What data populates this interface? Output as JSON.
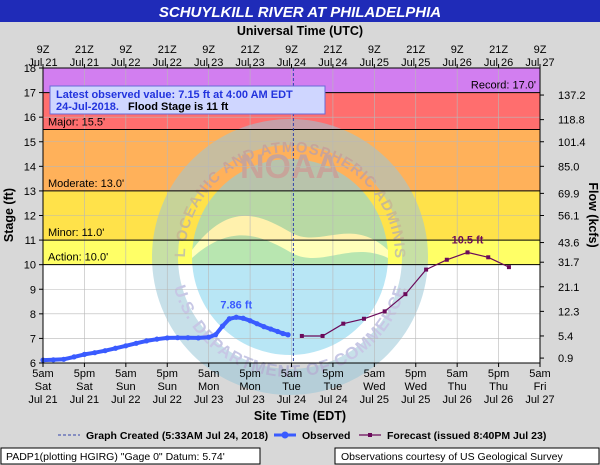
{
  "header": {
    "title": "SCHUYLKILL RIVER AT PHILADELPHIA",
    "top_axis_title": "Universal Time (UTC)",
    "bottom_axis_title": "Site Time (EDT)"
  },
  "latest_box": {
    "line1": "Latest observed value: 7.15 ft at 4:00 AM EDT",
    "line2_date": "24-Jul-2018.",
    "line2_flood": "Flood Stage is 11 ft"
  },
  "legend": {
    "graph_created": "Graph Created (5:33AM Jul 24, 2018)",
    "observed": "Observed",
    "forecast": "Forecast (issued 8:40PM Jul 23)"
  },
  "footer": {
    "left": "PADP1(plotting HGIRG) \"Gage 0\" Datum: 5.74'",
    "right": "Observations courtesy of US Geological Survey"
  },
  "watermark": {
    "logo_text": "NOAA",
    "ring_text_top": "NATIONAL OCEANIC AND ATMOSPHERIC ADMINISTRATION",
    "ring_text_bottom": "U.S. DEPARTMENT OF COMMERCE"
  },
  "colors": {
    "title_bar": "#1f2bb8",
    "observed": "#3a5bff",
    "forecast": "#6b0a5a",
    "record_band": "#d27ef0",
    "major_band": "#ff6e6e",
    "moderate_band": "#ffb15a",
    "minor_band": "#ffe24a",
    "action_band": "#ffff66",
    "plot_bg": "#ffffff"
  },
  "chart_data": {
    "type": "line",
    "ylabel": "Stage (ft)",
    "y2label": "Flow (kcfs)",
    "ylim": [
      6,
      18
    ],
    "y_ticks": [
      6,
      7,
      8,
      9,
      10,
      11,
      12,
      13,
      14,
      15,
      16,
      17,
      18
    ],
    "flow_ticks": [
      {
        "stage": 6.2,
        "label": "0.9"
      },
      {
        "stage": 7.1,
        "label": "5.4"
      },
      {
        "stage": 8.1,
        "label": "12.3"
      },
      {
        "stage": 9.1,
        "label": "21.1"
      },
      {
        "stage": 10.1,
        "label": "31.7"
      },
      {
        "stage": 10.9,
        "label": "43.6"
      },
      {
        "stage": 12.0,
        "label": "56.1"
      },
      {
        "stage": 12.9,
        "label": "69.9"
      },
      {
        "stage": 14.0,
        "label": "85.0"
      },
      {
        "stage": 15.0,
        "label": "101.4"
      },
      {
        "stage": 15.9,
        "label": "118.8"
      },
      {
        "stage": 16.9,
        "label": "137.2"
      }
    ],
    "x_start": "2018-07-21 05:00 EDT",
    "x_end": "2018-07-27 05:00 EDT",
    "bottom_ticks": [
      {
        "hour": "5am",
        "day": "Sat",
        "date": "Jul 21"
      },
      {
        "hour": "5pm",
        "day": "Sat",
        "date": "Jul 21"
      },
      {
        "hour": "5am",
        "day": "Sun",
        "date": "Jul 22"
      },
      {
        "hour": "5pm",
        "day": "Sun",
        "date": "Jul 22"
      },
      {
        "hour": "5am",
        "day": "Mon",
        "date": "Jul 23"
      },
      {
        "hour": "5pm",
        "day": "Mon",
        "date": "Jul 23"
      },
      {
        "hour": "5am",
        "day": "Tue",
        "date": "Jul 24"
      },
      {
        "hour": "5pm",
        "day": "Tue",
        "date": "Jul 24"
      },
      {
        "hour": "5am",
        "day": "Wed",
        "date": "Jul 25"
      },
      {
        "hour": "5pm",
        "day": "Wed",
        "date": "Jul 25"
      },
      {
        "hour": "5am",
        "day": "Thu",
        "date": "Jul 26"
      },
      {
        "hour": "5pm",
        "day": "Thu",
        "date": "Jul 26"
      },
      {
        "hour": "5am",
        "day": "Fri",
        "date": "Jul 27"
      }
    ],
    "top_ticks": [
      {
        "hour": "9Z",
        "date": "Jul 21"
      },
      {
        "hour": "21Z",
        "date": "Jul 21"
      },
      {
        "hour": "9Z",
        "date": "Jul 22"
      },
      {
        "hour": "21Z",
        "date": "Jul 22"
      },
      {
        "hour": "9Z",
        "date": "Jul 23"
      },
      {
        "hour": "21Z",
        "date": "Jul 23"
      },
      {
        "hour": "9Z",
        "date": "Jul 24"
      },
      {
        "hour": "21Z",
        "date": "Jul 24"
      },
      {
        "hour": "9Z",
        "date": "Jul 25"
      },
      {
        "hour": "21Z",
        "date": "Jul 25"
      },
      {
        "hour": "9Z",
        "date": "Jul 26"
      },
      {
        "hour": "21Z",
        "date": "Jul 26"
      },
      {
        "hour": "9Z",
        "date": "Jul 27"
      }
    ],
    "flood_categories": [
      {
        "name": "Record",
        "label": "Record: 17.0'",
        "lower": 17.0,
        "upper": 18.0
      },
      {
        "name": "Major",
        "label": "Major: 15.5'",
        "lower": 15.5,
        "upper": 17.0
      },
      {
        "name": "Moderate",
        "label": "Moderate: 13.0'",
        "lower": 13.0,
        "upper": 15.5
      },
      {
        "name": "Minor",
        "label": "Minor: 11.0'",
        "lower": 11.0,
        "upper": 13.0
      },
      {
        "name": "Action",
        "label": "Action: 10.0'",
        "lower": 10.0,
        "upper": 11.0
      }
    ],
    "graph_created": "2018-07-24 05:33 EDT",
    "observed_peak_label": "7.86 ft",
    "forecast_peak_label": "10.5 ft",
    "series": [
      {
        "name": "Observed",
        "type": "line-dots",
        "points": [
          [
            "2018-07-21 05:00",
            6.12
          ],
          [
            "2018-07-21 08:00",
            6.13
          ],
          [
            "2018-07-21 11:00",
            6.15
          ],
          [
            "2018-07-21 14:00",
            6.25
          ],
          [
            "2018-07-21 17:00",
            6.35
          ],
          [
            "2018-07-21 20:00",
            6.42
          ],
          [
            "2018-07-21 23:00",
            6.5
          ],
          [
            "2018-07-22 02:00",
            6.6
          ],
          [
            "2018-07-22 05:00",
            6.7
          ],
          [
            "2018-07-22 08:00",
            6.8
          ],
          [
            "2018-07-22 11:00",
            6.9
          ],
          [
            "2018-07-22 14:00",
            6.97
          ],
          [
            "2018-07-22 17:00",
            7.02
          ],
          [
            "2018-07-22 20:00",
            7.03
          ],
          [
            "2018-07-22 23:00",
            7.03
          ],
          [
            "2018-07-23 02:00",
            7.02
          ],
          [
            "2018-07-23 05:00",
            7.05
          ],
          [
            "2018-07-23 07:00",
            7.15
          ],
          [
            "2018-07-23 09:00",
            7.5
          ],
          [
            "2018-07-23 11:00",
            7.8
          ],
          [
            "2018-07-23 13:00",
            7.86
          ],
          [
            "2018-07-23 15:00",
            7.82
          ],
          [
            "2018-07-23 17:00",
            7.72
          ],
          [
            "2018-07-23 19:00",
            7.6
          ],
          [
            "2018-07-23 21:00",
            7.48
          ],
          [
            "2018-07-23 23:00",
            7.38
          ],
          [
            "2018-07-24 01:00",
            7.28
          ],
          [
            "2018-07-24 02:30",
            7.2
          ],
          [
            "2018-07-24 04:00",
            7.15
          ]
        ]
      },
      {
        "name": "Forecast",
        "type": "line-squares",
        "points": [
          [
            "2018-07-24 08:00",
            7.1
          ],
          [
            "2018-07-24 14:00",
            7.1
          ],
          [
            "2018-07-24 20:00",
            7.6
          ],
          [
            "2018-07-25 02:00",
            7.8
          ],
          [
            "2018-07-25 08:00",
            8.1
          ],
          [
            "2018-07-25 14:00",
            8.8
          ],
          [
            "2018-07-25 20:00",
            9.8
          ],
          [
            "2018-07-26 02:00",
            10.2
          ],
          [
            "2018-07-26 08:00",
            10.5
          ],
          [
            "2018-07-26 14:00",
            10.3
          ],
          [
            "2018-07-26 20:00",
            9.9
          ]
        ]
      }
    ]
  }
}
